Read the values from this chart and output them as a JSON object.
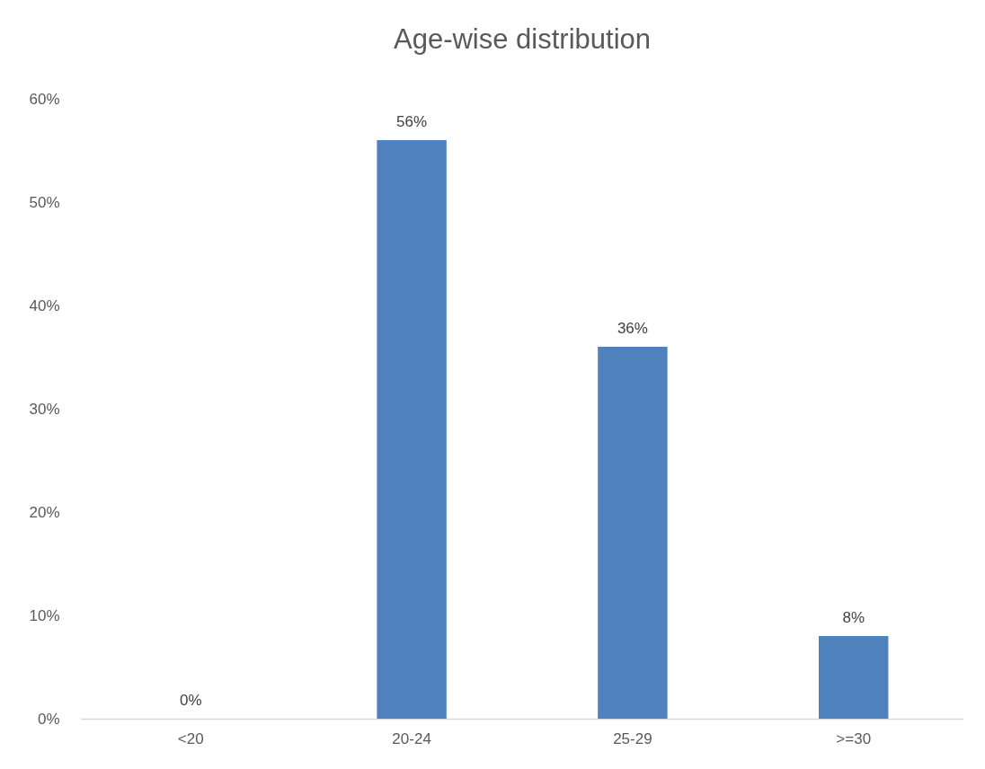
{
  "chart_data": {
    "type": "bar",
    "title": "Age-wise distribution",
    "categories": [
      "<20",
      "20-24",
      "25-29",
      ">=30"
    ],
    "values": [
      0,
      56,
      36,
      8
    ],
    "value_labels": [
      "0%",
      "56%",
      "36%",
      "8%"
    ],
    "color": "#4f81bd",
    "ylim": [
      0,
      60
    ],
    "yticks": [
      {
        "value": 0,
        "label": "0%"
      },
      {
        "value": 10,
        "label": "10%"
      },
      {
        "value": 20,
        "label": "20%"
      },
      {
        "value": 30,
        "label": "30%"
      },
      {
        "value": 40,
        "label": "40%"
      },
      {
        "value": 50,
        "label": "50%"
      },
      {
        "value": 60,
        "label": "60%"
      }
    ],
    "grid": false
  }
}
